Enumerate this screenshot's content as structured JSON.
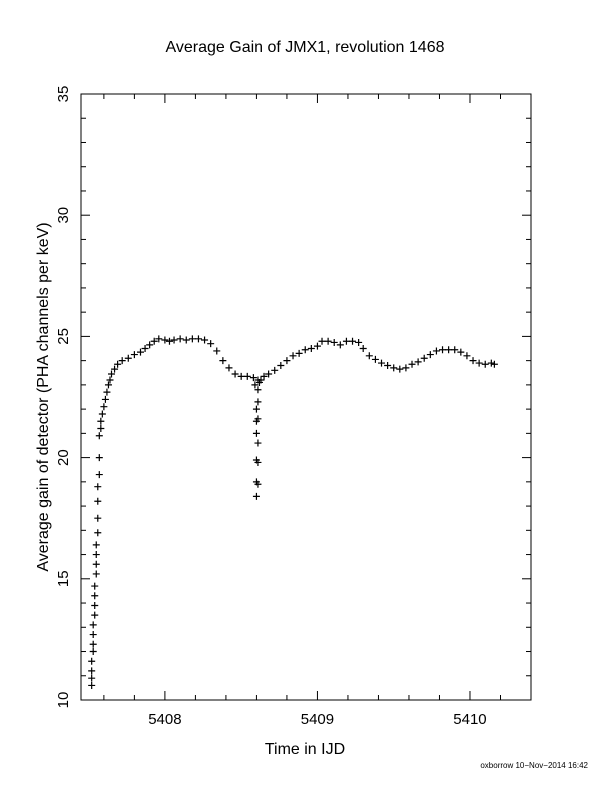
{
  "chart_data": {
    "type": "scatter",
    "title": "Average Gain of JMX1, revolution 1468",
    "xlabel": "Time in IJD",
    "ylabel": "Average gain of detector (PHA channels per keV)",
    "xlim": [
      5407.45,
      5410.4
    ],
    "ylim": [
      10,
      35
    ],
    "xticks": [
      5408,
      5409,
      5410
    ],
    "yticks": [
      10,
      15,
      20,
      25,
      30,
      35
    ],
    "marker": "+",
    "grid": false,
    "footer": "oxborrow 10−Nov−2014 16:42",
    "series": [
      {
        "points": [
          [
            5407.52,
            10.6
          ],
          [
            5407.52,
            10.9
          ],
          [
            5407.52,
            11.2
          ],
          [
            5407.52,
            11.6
          ],
          [
            5407.53,
            12.0
          ],
          [
            5407.53,
            12.3
          ],
          [
            5407.53,
            12.7
          ],
          [
            5407.53,
            13.1
          ],
          [
            5407.54,
            13.5
          ],
          [
            5407.54,
            13.9
          ],
          [
            5407.54,
            14.3
          ],
          [
            5407.54,
            14.7
          ],
          [
            5407.55,
            15.2
          ],
          [
            5407.55,
            15.6
          ],
          [
            5407.55,
            16.0
          ],
          [
            5407.55,
            16.4
          ],
          [
            5407.56,
            16.9
          ],
          [
            5407.56,
            17.5
          ],
          [
            5407.56,
            18.2
          ],
          [
            5407.56,
            18.8
          ],
          [
            5407.57,
            19.3
          ],
          [
            5407.57,
            20.0
          ],
          [
            5407.57,
            20.9
          ],
          [
            5407.58,
            21.2
          ],
          [
            5407.58,
            21.5
          ],
          [
            5407.59,
            21.8
          ],
          [
            5407.6,
            22.1
          ],
          [
            5407.61,
            22.4
          ],
          [
            5407.62,
            22.7
          ],
          [
            5407.63,
            23.0
          ],
          [
            5407.64,
            23.2
          ],
          [
            5407.65,
            23.45
          ],
          [
            5407.67,
            23.65
          ],
          [
            5407.69,
            23.85
          ],
          [
            5407.72,
            24.0
          ],
          [
            5407.76,
            24.1
          ],
          [
            5407.8,
            24.25
          ],
          [
            5407.84,
            24.35
          ],
          [
            5407.87,
            24.5
          ],
          [
            5407.9,
            24.65
          ],
          [
            5407.93,
            24.8
          ],
          [
            5407.96,
            24.9
          ],
          [
            5408.0,
            24.85
          ],
          [
            5408.03,
            24.8
          ],
          [
            5408.06,
            24.85
          ],
          [
            5408.1,
            24.9
          ],
          [
            5408.14,
            24.85
          ],
          [
            5408.18,
            24.9
          ],
          [
            5408.22,
            24.9
          ],
          [
            5408.26,
            24.85
          ],
          [
            5408.3,
            24.7
          ],
          [
            5408.34,
            24.4
          ],
          [
            5408.38,
            24.0
          ],
          [
            5408.42,
            23.7
          ],
          [
            5408.46,
            23.45
          ],
          [
            5408.5,
            23.35
          ],
          [
            5408.54,
            23.35
          ],
          [
            5408.58,
            23.3
          ],
          [
            5408.59,
            23.0
          ],
          [
            5408.6,
            22.0
          ],
          [
            5408.6,
            21.5
          ],
          [
            5408.6,
            21.0
          ],
          [
            5408.6,
            19.9
          ],
          [
            5408.6,
            19.0
          ],
          [
            5408.6,
            18.4
          ],
          [
            5408.61,
            23.2
          ],
          [
            5408.61,
            22.8
          ],
          [
            5408.61,
            22.3
          ],
          [
            5408.61,
            21.6
          ],
          [
            5408.61,
            20.6
          ],
          [
            5408.61,
            19.8
          ],
          [
            5408.61,
            18.9
          ],
          [
            5408.62,
            23.1
          ],
          [
            5408.63,
            23.2
          ],
          [
            5408.65,
            23.35
          ],
          [
            5408.68,
            23.45
          ],
          [
            5408.72,
            23.6
          ],
          [
            5408.76,
            23.8
          ],
          [
            5408.8,
            24.0
          ],
          [
            5408.84,
            24.2
          ],
          [
            5408.88,
            24.3
          ],
          [
            5408.92,
            24.45
          ],
          [
            5408.96,
            24.5
          ],
          [
            5409.0,
            24.6
          ],
          [
            5409.03,
            24.8
          ],
          [
            5409.07,
            24.8
          ],
          [
            5409.11,
            24.75
          ],
          [
            5409.15,
            24.65
          ],
          [
            5409.19,
            24.8
          ],
          [
            5409.23,
            24.8
          ],
          [
            5409.27,
            24.75
          ],
          [
            5409.3,
            24.5
          ],
          [
            5409.34,
            24.2
          ],
          [
            5409.38,
            24.05
          ],
          [
            5409.42,
            23.9
          ],
          [
            5409.46,
            23.8
          ],
          [
            5409.5,
            23.7
          ],
          [
            5409.54,
            23.65
          ],
          [
            5409.58,
            23.7
          ],
          [
            5409.62,
            23.85
          ],
          [
            5409.66,
            23.95
          ],
          [
            5409.7,
            24.1
          ],
          [
            5409.74,
            24.25
          ],
          [
            5409.78,
            24.4
          ],
          [
            5409.82,
            24.45
          ],
          [
            5409.86,
            24.45
          ],
          [
            5409.9,
            24.45
          ],
          [
            5409.94,
            24.35
          ],
          [
            5409.98,
            24.2
          ],
          [
            5410.02,
            24.0
          ],
          [
            5410.06,
            23.9
          ],
          [
            5410.1,
            23.85
          ],
          [
            5410.14,
            23.9
          ],
          [
            5410.16,
            23.85
          ]
        ]
      }
    ]
  }
}
